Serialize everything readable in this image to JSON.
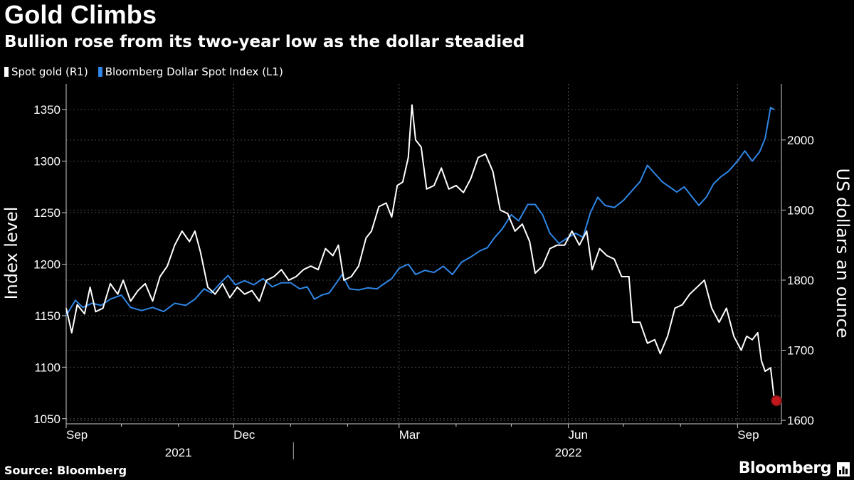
{
  "title": "Gold Climbs",
  "subtitle": "Bullion rose from its two-year low as the dollar steadied",
  "source": "Source: Bloomberg",
  "brand": "Bloomberg",
  "legend": [
    {
      "label": "Spot gold (R1)",
      "color": "#ffffff"
    },
    {
      "label": "Bloomberg Dollar Spot Index (L1)",
      "color": "#2f86e6"
    }
  ],
  "chart_data": {
    "type": "line",
    "title": "Gold Climbs",
    "subtitle": "Bullion rose from its two-year low as the dollar steadied",
    "xlabel": "",
    "ylabel_left": "Index level",
    "ylabel_right": "US dollars an ounce",
    "x_range": [
      "2021-09-01",
      "2022-09-21"
    ],
    "ylim_left": [
      1045,
      1375
    ],
    "ylim_right": [
      1595,
      2080
    ],
    "yticks_left": [
      1050,
      1100,
      1150,
      1200,
      1250,
      1300,
      1350
    ],
    "yticks_right": [
      1600,
      1700,
      1800,
      1900,
      2000
    ],
    "month_labels": [
      {
        "date": "2021-09-01",
        "label": "Sep"
      },
      {
        "date": "2021-12-01",
        "label": "Dec"
      },
      {
        "date": "2022-03-01",
        "label": "Mar"
      },
      {
        "date": "2022-06-01",
        "label": "Jun"
      },
      {
        "date": "2022-09-01",
        "label": "Sep"
      }
    ],
    "minor_ticks": [
      "2021-10-01",
      "2021-11-01",
      "2022-01-01",
      "2022-02-01",
      "2022-04-01",
      "2022-05-01",
      "2022-07-01",
      "2022-08-01"
    ],
    "year_labels": [
      {
        "label": "2021",
        "date": "2021-11-01"
      },
      {
        "label": "2022",
        "date": "2022-06-01"
      }
    ],
    "year_divider": "2022-01-01",
    "grid": true,
    "series": [
      {
        "name": "Bloomberg Dollar Spot Index (L1)",
        "axis": "left",
        "color": "#2f86e6",
        "points": [
          [
            "2021-09-01",
            1150
          ],
          [
            "2021-09-06",
            1165
          ],
          [
            "2021-09-10",
            1158
          ],
          [
            "2021-09-15",
            1162
          ],
          [
            "2021-09-20",
            1160
          ],
          [
            "2021-09-25",
            1166
          ],
          [
            "2021-10-01",
            1170
          ],
          [
            "2021-10-06",
            1158
          ],
          [
            "2021-10-12",
            1155
          ],
          [
            "2021-10-18",
            1158
          ],
          [
            "2021-10-24",
            1154
          ],
          [
            "2021-10-30",
            1162
          ],
          [
            "2021-11-05",
            1160
          ],
          [
            "2021-11-10",
            1166
          ],
          [
            "2021-11-15",
            1176
          ],
          [
            "2021-11-19",
            1172
          ],
          [
            "2021-11-24",
            1182
          ],
          [
            "2021-11-28",
            1189
          ],
          [
            "2021-12-02",
            1180
          ],
          [
            "2021-12-07",
            1184
          ],
          [
            "2021-12-12",
            1180
          ],
          [
            "2021-12-17",
            1186
          ],
          [
            "2021-12-22",
            1178
          ],
          [
            "2021-12-27",
            1182
          ],
          [
            "2022-01-01",
            1182
          ],
          [
            "2022-01-06",
            1176
          ],
          [
            "2022-01-10",
            1178
          ],
          [
            "2022-01-14",
            1166
          ],
          [
            "2022-01-18",
            1170
          ],
          [
            "2022-01-22",
            1172
          ],
          [
            "2022-01-26",
            1182
          ],
          [
            "2022-01-29",
            1190
          ],
          [
            "2022-02-02",
            1176
          ],
          [
            "2022-02-07",
            1175
          ],
          [
            "2022-02-12",
            1177
          ],
          [
            "2022-02-17",
            1176
          ],
          [
            "2022-02-20",
            1180
          ],
          [
            "2022-02-25",
            1186
          ],
          [
            "2022-03-01",
            1196
          ],
          [
            "2022-03-06",
            1200
          ],
          [
            "2022-03-10",
            1190
          ],
          [
            "2022-03-15",
            1194
          ],
          [
            "2022-03-20",
            1192
          ],
          [
            "2022-03-25",
            1198
          ],
          [
            "2022-03-30",
            1190
          ],
          [
            "2022-04-04",
            1202
          ],
          [
            "2022-04-09",
            1207
          ],
          [
            "2022-04-14",
            1213
          ],
          [
            "2022-04-18",
            1216
          ],
          [
            "2022-04-22",
            1226
          ],
          [
            "2022-04-26",
            1234
          ],
          [
            "2022-05-01",
            1248
          ],
          [
            "2022-05-05",
            1242
          ],
          [
            "2022-05-10",
            1258
          ],
          [
            "2022-05-14",
            1258
          ],
          [
            "2022-05-18",
            1248
          ],
          [
            "2022-05-22",
            1230
          ],
          [
            "2022-05-27",
            1220
          ],
          [
            "2022-06-01",
            1226
          ],
          [
            "2022-06-05",
            1230
          ],
          [
            "2022-06-09",
            1226
          ],
          [
            "2022-06-13",
            1250
          ],
          [
            "2022-06-17",
            1265
          ],
          [
            "2022-06-21",
            1257
          ],
          [
            "2022-06-26",
            1255
          ],
          [
            "2022-07-01",
            1262
          ],
          [
            "2022-07-05",
            1270
          ],
          [
            "2022-07-10",
            1280
          ],
          [
            "2022-07-14",
            1296
          ],
          [
            "2022-07-18",
            1288
          ],
          [
            "2022-07-22",
            1280
          ],
          [
            "2022-07-26",
            1275
          ],
          [
            "2022-07-30",
            1270
          ],
          [
            "2022-08-03",
            1275
          ],
          [
            "2022-08-07",
            1266
          ],
          [
            "2022-08-11",
            1257
          ],
          [
            "2022-08-15",
            1265
          ],
          [
            "2022-08-19",
            1278
          ],
          [
            "2022-08-23",
            1285
          ],
          [
            "2022-08-27",
            1290
          ],
          [
            "2022-09-01",
            1300
          ],
          [
            "2022-09-05",
            1310
          ],
          [
            "2022-09-09",
            1300
          ],
          [
            "2022-09-13",
            1309
          ],
          [
            "2022-09-16",
            1322
          ],
          [
            "2022-09-19",
            1352
          ],
          [
            "2022-09-21",
            1350
          ]
        ]
      },
      {
        "name": "Spot gold (R1)",
        "axis": "right",
        "color": "#ffffff",
        "points": [
          [
            "2021-09-01",
            1760
          ],
          [
            "2021-09-04",
            1725
          ],
          [
            "2021-09-07",
            1765
          ],
          [
            "2021-09-11",
            1752
          ],
          [
            "2021-09-14",
            1790
          ],
          [
            "2021-09-17",
            1755
          ],
          [
            "2021-09-21",
            1760
          ],
          [
            "2021-09-25",
            1795
          ],
          [
            "2021-09-29",
            1780
          ],
          [
            "2021-10-02",
            1800
          ],
          [
            "2021-10-06",
            1770
          ],
          [
            "2021-10-10",
            1785
          ],
          [
            "2021-10-14",
            1795
          ],
          [
            "2021-10-18",
            1770
          ],
          [
            "2021-10-22",
            1805
          ],
          [
            "2021-10-26",
            1820
          ],
          [
            "2021-10-30",
            1850
          ],
          [
            "2021-11-03",
            1870
          ],
          [
            "2021-11-07",
            1855
          ],
          [
            "2021-11-10",
            1870
          ],
          [
            "2021-11-13",
            1840
          ],
          [
            "2021-11-17",
            1790
          ],
          [
            "2021-11-21",
            1780
          ],
          [
            "2021-11-25",
            1795
          ],
          [
            "2021-11-29",
            1775
          ],
          [
            "2021-12-03",
            1790
          ],
          [
            "2021-12-07",
            1780
          ],
          [
            "2021-12-11",
            1785
          ],
          [
            "2021-12-15",
            1770
          ],
          [
            "2021-12-19",
            1800
          ],
          [
            "2021-12-23",
            1805
          ],
          [
            "2021-12-27",
            1815
          ],
          [
            "2021-12-31",
            1800
          ],
          [
            "2022-01-04",
            1805
          ],
          [
            "2022-01-08",
            1815
          ],
          [
            "2022-01-12",
            1820
          ],
          [
            "2022-01-16",
            1815
          ],
          [
            "2022-01-20",
            1845
          ],
          [
            "2022-01-24",
            1835
          ],
          [
            "2022-01-27",
            1850
          ],
          [
            "2022-01-30",
            1800
          ],
          [
            "2022-02-03",
            1805
          ],
          [
            "2022-02-07",
            1820
          ],
          [
            "2022-02-11",
            1860
          ],
          [
            "2022-02-14",
            1870
          ],
          [
            "2022-02-18",
            1905
          ],
          [
            "2022-02-22",
            1910
          ],
          [
            "2022-02-25",
            1890
          ],
          [
            "2022-02-28",
            1935
          ],
          [
            "2022-03-03",
            1940
          ],
          [
            "2022-03-06",
            1975
          ],
          [
            "2022-03-08",
            2050
          ],
          [
            "2022-03-10",
            2000
          ],
          [
            "2022-03-13",
            1990
          ],
          [
            "2022-03-16",
            1930
          ],
          [
            "2022-03-20",
            1935
          ],
          [
            "2022-03-24",
            1960
          ],
          [
            "2022-03-28",
            1930
          ],
          [
            "2022-04-01",
            1935
          ],
          [
            "2022-04-05",
            1925
          ],
          [
            "2022-04-09",
            1945
          ],
          [
            "2022-04-13",
            1975
          ],
          [
            "2022-04-17",
            1980
          ],
          [
            "2022-04-21",
            1955
          ],
          [
            "2022-04-25",
            1900
          ],
          [
            "2022-04-29",
            1895
          ],
          [
            "2022-05-03",
            1870
          ],
          [
            "2022-05-07",
            1880
          ],
          [
            "2022-05-11",
            1855
          ],
          [
            "2022-05-14",
            1810
          ],
          [
            "2022-05-18",
            1820
          ],
          [
            "2022-05-22",
            1845
          ],
          [
            "2022-05-26",
            1850
          ],
          [
            "2022-05-30",
            1850
          ],
          [
            "2022-06-03",
            1870
          ],
          [
            "2022-06-07",
            1850
          ],
          [
            "2022-06-11",
            1870
          ],
          [
            "2022-06-14",
            1815
          ],
          [
            "2022-06-18",
            1845
          ],
          [
            "2022-06-22",
            1835
          ],
          [
            "2022-06-26",
            1830
          ],
          [
            "2022-06-30",
            1805
          ],
          [
            "2022-07-04",
            1805
          ],
          [
            "2022-07-06",
            1740
          ],
          [
            "2022-07-10",
            1740
          ],
          [
            "2022-07-14",
            1710
          ],
          [
            "2022-07-18",
            1715
          ],
          [
            "2022-07-21",
            1695
          ],
          [
            "2022-07-25",
            1720
          ],
          [
            "2022-07-29",
            1760
          ],
          [
            "2022-08-02",
            1765
          ],
          [
            "2022-08-06",
            1780
          ],
          [
            "2022-08-10",
            1790
          ],
          [
            "2022-08-14",
            1800
          ],
          [
            "2022-08-18",
            1760
          ],
          [
            "2022-08-22",
            1740
          ],
          [
            "2022-08-26",
            1760
          ],
          [
            "2022-08-30",
            1720
          ],
          [
            "2022-09-03",
            1700
          ],
          [
            "2022-09-06",
            1720
          ],
          [
            "2022-09-09",
            1715
          ],
          [
            "2022-09-12",
            1725
          ],
          [
            "2022-09-14",
            1685
          ],
          [
            "2022-09-16",
            1670
          ],
          [
            "2022-09-19",
            1675
          ],
          [
            "2022-09-21",
            1630
          ]
        ],
        "highlight": {
          "date": "2022-09-21",
          "value": 1630,
          "note": "two-year low"
        }
      }
    ]
  }
}
